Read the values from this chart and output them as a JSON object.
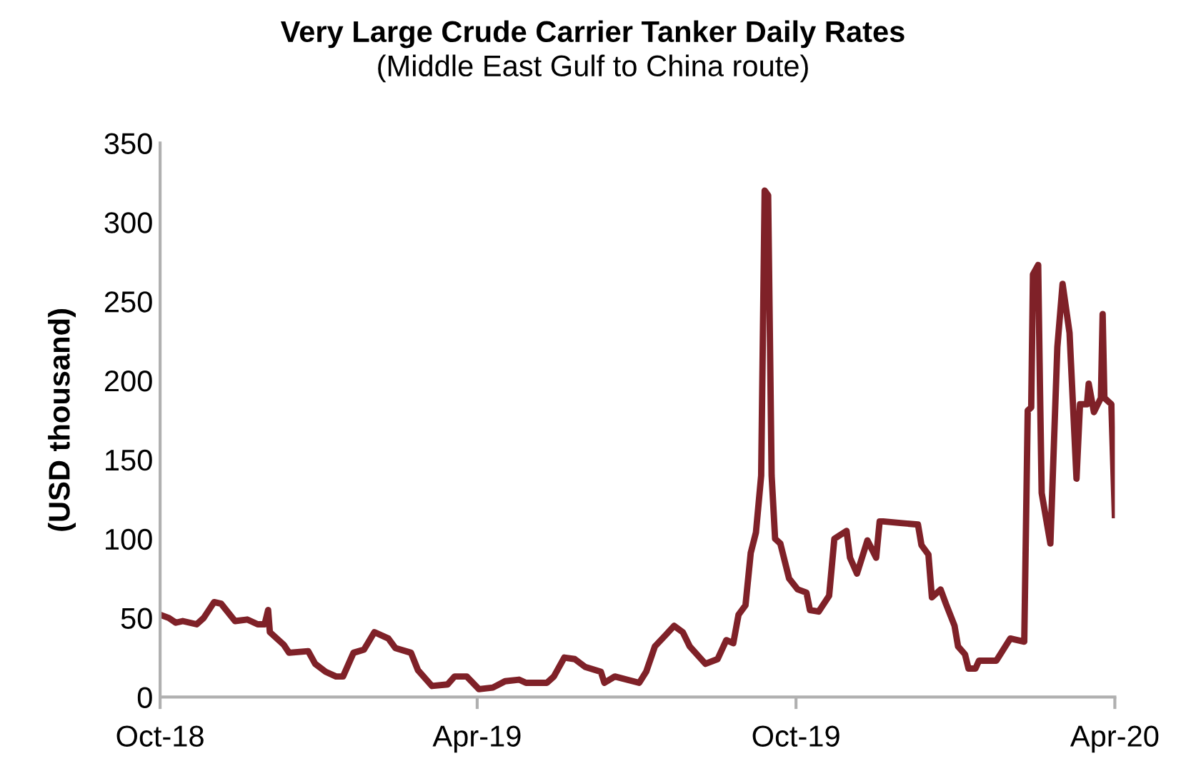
{
  "chart_data": {
    "type": "line",
    "title": "Very Large Crude Carrier Tanker Daily Rates",
    "subtitle": "(Middle East Gulf to China route)",
    "ylabel": "(USD thousand)",
    "x": [
      "2018-10-01",
      "2018-10-06",
      "2018-10-10",
      "2018-10-14",
      "2018-10-22",
      "2018-10-26",
      "2018-11-01",
      "2018-11-05",
      "2018-11-13",
      "2018-11-20",
      "2018-11-26",
      "2018-11-30",
      "2018-12-02",
      "2018-12-03",
      "2018-12-11",
      "2018-12-14",
      "2018-12-25",
      "2018-12-29",
      "2019-01-04",
      "2019-01-10",
      "2019-01-14",
      "2019-01-20",
      "2019-01-26",
      "2019-02-01",
      "2019-02-09",
      "2019-02-13",
      "2019-02-22",
      "2019-02-26",
      "2019-03-06",
      "2019-03-15",
      "2019-03-19",
      "2019-03-26",
      "2019-04-02",
      "2019-04-10",
      "2019-04-17",
      "2019-04-25",
      "2019-04-29",
      "2019-05-11",
      "2019-05-15",
      "2019-05-21",
      "2019-05-27",
      "2019-06-02",
      "2019-06-11",
      "2019-06-13",
      "2019-06-19",
      "2019-07-03",
      "2019-07-07",
      "2019-07-12",
      "2019-07-18",
      "2019-07-23",
      "2019-07-28",
      "2019-08-01",
      "2019-08-10",
      "2019-08-17",
      "2019-08-22",
      "2019-08-26",
      "2019-08-29",
      "2019-09-02",
      "2019-09-05",
      "2019-09-08",
      "2019-09-11",
      "2019-09-13",
      "2019-09-15",
      "2019-09-17",
      "2019-09-19",
      "2019-09-22",
      "2019-09-27",
      "2019-10-02",
      "2019-10-07",
      "2019-10-09",
      "2019-10-14",
      "2019-10-20",
      "2019-10-23",
      "2019-10-30",
      "2019-11-01",
      "2019-11-05",
      "2019-11-11",
      "2019-11-16",
      "2019-11-18",
      "2019-11-20",
      "2019-11-30",
      "2019-12-10",
      "2019-12-12",
      "2019-12-16",
      "2019-12-18",
      "2019-12-23",
      "2019-12-26",
      "2019-12-31",
      "2020-01-02",
      "2020-01-06",
      "2020-01-08",
      "2020-01-12",
      "2020-01-14",
      "2020-01-24",
      "2020-01-28",
      "2020-02-01",
      "2020-02-09",
      "2020-02-11",
      "2020-02-13",
      "2020-02-14",
      "2020-02-17",
      "2020-02-18",
      "2020-02-19",
      "2020-02-24",
      "2020-02-28",
      "2020-03-02",
      "2020-03-06",
      "2020-03-10",
      "2020-03-12",
      "2020-03-16",
      "2020-03-17",
      "2020-03-20",
      "2020-03-24",
      "2020-03-25",
      "2020-03-26",
      "2020-03-30",
      "2020-04-01"
    ],
    "series": [
      {
        "color": "#7f2128",
        "values": [
          52,
          50,
          47,
          48,
          46,
          50,
          60,
          59,
          48,
          49,
          46,
          46,
          55,
          41,
          33,
          28,
          29,
          21,
          16,
          13,
          13,
          28,
          30,
          41,
          37,
          31,
          28,
          17,
          7,
          8,
          13,
          13,
          5,
          6,
          10,
          11,
          9,
          9,
          13,
          25,
          24,
          19,
          16,
          9,
          13,
          9,
          16,
          32,
          39,
          45,
          41,
          32,
          21,
          24,
          36,
          34,
          52,
          58,
          91,
          104,
          140,
          320,
          317,
          140,
          100,
          97,
          75,
          68,
          66,
          55,
          54,
          64,
          100,
          105,
          88,
          78,
          99,
          88,
          111,
          111,
          110,
          109,
          96,
          90,
          63,
          68,
          59,
          45,
          32,
          27,
          18,
          18,
          23,
          23,
          30,
          37,
          35,
          181,
          183,
          267,
          273,
          197,
          129,
          97,
          221,
          261,
          230,
          138,
          185,
          185,
          198,
          180,
          189,
          242,
          189,
          185,
          115
        ]
      }
    ],
    "xlim": [
      "2018-10-01",
      "2020-04-01"
    ],
    "xticks": [
      {
        "value": "2018-10-01",
        "label": "Oct-18"
      },
      {
        "value": "2019-04-01",
        "label": "Apr-19"
      },
      {
        "value": "2019-10-01",
        "label": "Oct-19"
      },
      {
        "value": "2020-04-01",
        "label": "Apr-20"
      }
    ],
    "ylim": [
      0,
      350
    ],
    "yticks": [
      0,
      50,
      100,
      150,
      200,
      250,
      300,
      350
    ],
    "grid": false,
    "line_style": "solid",
    "marker": "none"
  }
}
